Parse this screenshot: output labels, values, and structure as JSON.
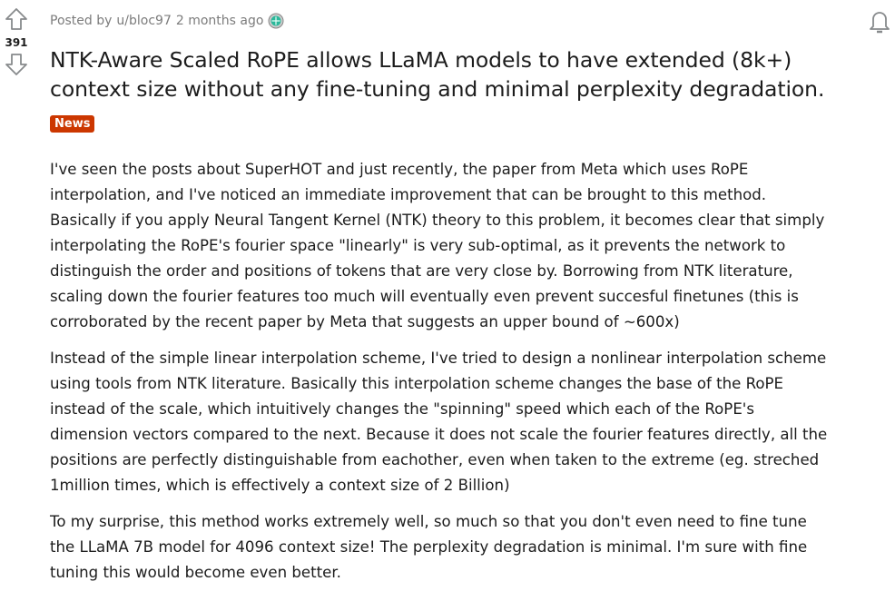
{
  "post": {
    "score": "391",
    "author_prefix": "Posted by",
    "author": "u/bloc97",
    "time": "2 months ago",
    "title_lines": [
      "NTK-Aware Scaled RoPE allows LLaMA models to have extended (8k+)",
      "context size without any fine-tuning and minimal perplexity degradation."
    ],
    "flair": "News",
    "flair_color": "#cc3700",
    "paragraphs": [
      [
        "I've seen the posts about SuperHOT and just recently, the paper from Meta which uses RoPE",
        "interpolation, and I've noticed an immediate improvement that can be brought to this method.",
        "Basically if you apply Neural Tangent Kernel (NTK) theory to this problem, it becomes clear that simply",
        "interpolating the RoPE's fourier space \"linearly\" is very sub-optimal, as it prevents the network to",
        "distinguish the order and positions of tokens that are very close by. Borrowing from NTK literature,",
        "scaling down the fourier features too much will eventually even prevent succesful finetunes (this is",
        "corroborated by the recent paper by Meta that suggests an upper bound of ~600x)"
      ],
      [
        "Instead of the simple linear interpolation scheme, I've tried to design a nonlinear interpolation scheme",
        "using tools from NTK literature. Basically this interpolation scheme changes the base of the RoPE",
        "instead of the scale, which intuitively changes the \"spinning\" speed which each of the RoPE's",
        "dimension vectors compared to the next. Because it does not scale the fourier features directly, all the",
        "positions are perfectly distinguishable from eachother, even when taken to the extreme (eg. streched",
        "1million times, which is effectively a context size of 2 Billion)"
      ],
      [
        "To my surprise, this method works extremely well, so much so that you don't even need to fine tune",
        "the LLaMA 7B model for 4096 context size! The perplexity degradation is minimal. I'm sure with fine",
        "tuning this would become even better."
      ]
    ]
  },
  "icons": {
    "upvote": "arrow-up-outline",
    "downvote": "arrow-down-outline",
    "award": "award-badge",
    "notify": "bell"
  }
}
